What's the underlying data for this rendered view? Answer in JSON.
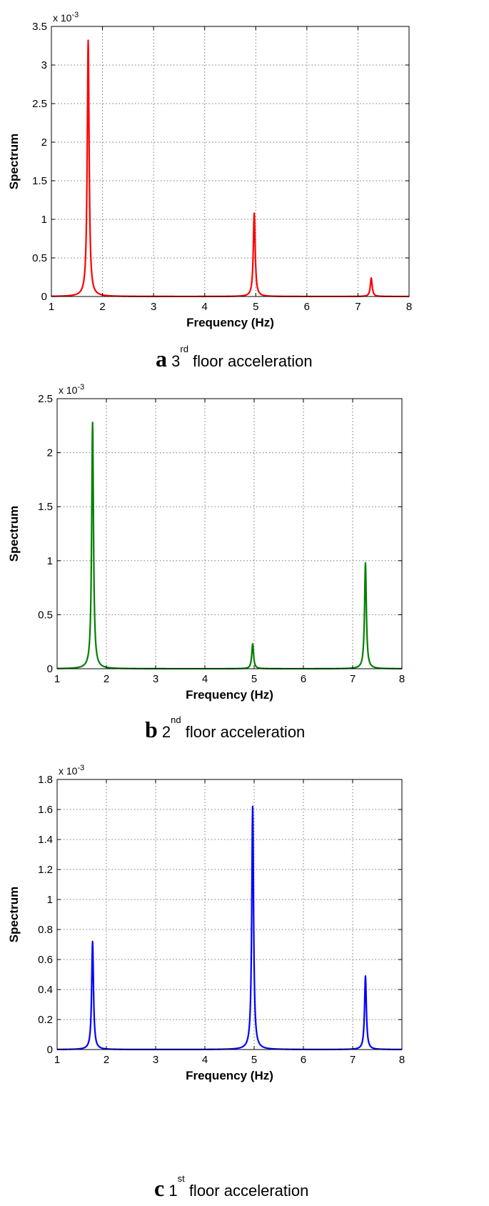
{
  "chart_data": [
    {
      "type": "line",
      "caption_letter": "a",
      "caption_num": "3",
      "caption_sup": "rd",
      "caption_rest": " floor acceleration",
      "xlabel": "Frequency (Hz)",
      "ylabel": "Spectrum",
      "multiplier": "x 10",
      "multiplier_exp": "-3",
      "xlim": [
        1,
        8
      ],
      "ylim": [
        0,
        3.5
      ],
      "xticks": [
        1,
        2,
        3,
        4,
        5,
        6,
        7,
        8
      ],
      "yticks": [
        0,
        0.5,
        1,
        1.5,
        2,
        2.5,
        3,
        3.5
      ],
      "grid": true,
      "color": "#ff0000",
      "series": [
        {
          "peaks": [
            {
              "x": 1.72,
              "y": 3.32
            },
            {
              "x": 4.97,
              "y": 1.08
            },
            {
              "x": 7.26,
              "y": 0.24
            }
          ]
        }
      ]
    },
    {
      "type": "line",
      "caption_letter": "b",
      "caption_num": "2",
      "caption_sup": "nd",
      "caption_rest": " floor acceleration",
      "xlabel": "Frequency (Hz)",
      "ylabel": "Spectrum",
      "multiplier": "x 10",
      "multiplier_exp": "-3",
      "xlim": [
        1,
        8
      ],
      "ylim": [
        0,
        2.5
      ],
      "xticks": [
        1,
        2,
        3,
        4,
        5,
        6,
        7,
        8
      ],
      "yticks": [
        0,
        0.5,
        1,
        1.5,
        2,
        2.5
      ],
      "grid": true,
      "color": "#008000",
      "series": [
        {
          "peaks": [
            {
              "x": 1.72,
              "y": 2.28
            },
            {
              "x": 4.97,
              "y": 0.23
            },
            {
              "x": 7.26,
              "y": 0.98
            }
          ]
        }
      ]
    },
    {
      "type": "line",
      "caption_letter": "c",
      "caption_num": "1",
      "caption_sup": "st",
      "caption_rest": " floor acceleration",
      "xlabel": "Frequency (Hz)",
      "ylabel": "Spectrum",
      "multiplier": "x 10",
      "multiplier_exp": "-3",
      "xlim": [
        1,
        8
      ],
      "ylim": [
        0,
        1.8
      ],
      "xticks": [
        1,
        2,
        3,
        4,
        5,
        6,
        7,
        8
      ],
      "yticks": [
        0,
        0.2,
        0.4,
        0.6,
        0.8,
        1,
        1.2,
        1.4,
        1.6,
        1.8
      ],
      "grid": true,
      "color": "#0000ff",
      "series": [
        {
          "peaks": [
            {
              "x": 1.72,
              "y": 0.72
            },
            {
              "x": 4.97,
              "y": 1.62
            },
            {
              "x": 7.26,
              "y": 0.49
            }
          ]
        }
      ]
    }
  ]
}
